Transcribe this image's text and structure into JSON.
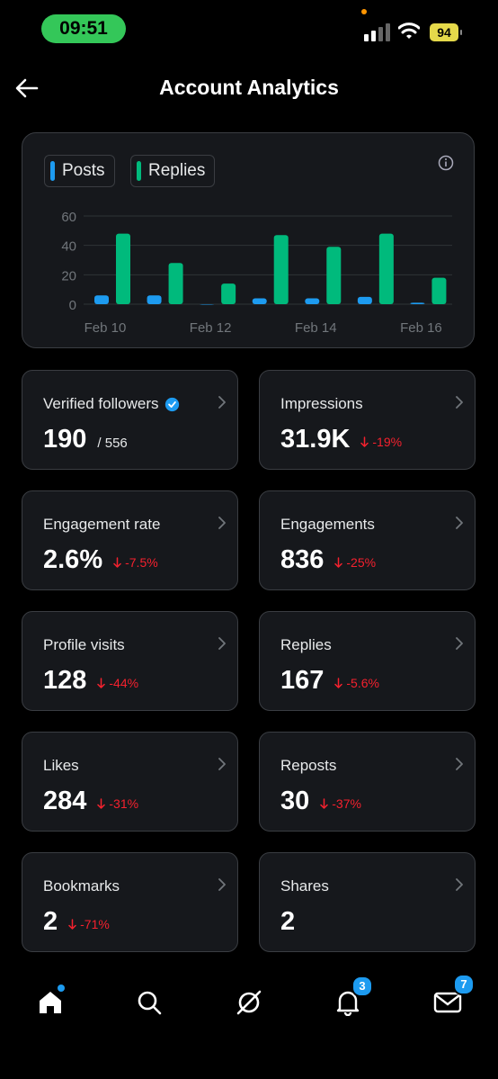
{
  "status_bar": {
    "time": "09:51",
    "battery": "94"
  },
  "header": {
    "title": "Account Analytics"
  },
  "chart_data": {
    "type": "bar",
    "legend": [
      "Posts",
      "Replies"
    ],
    "x_tick_labels": [
      "Feb 10",
      "Feb 12",
      "Feb 14",
      "Feb 16"
    ],
    "y_ticks": [
      "60",
      "40",
      "20",
      "0"
    ],
    "ylim": [
      0,
      60
    ],
    "categories": [
      "Feb 10",
      "Feb 11",
      "Feb 12",
      "Feb 13",
      "Feb 14",
      "Feb 15",
      "Feb 16"
    ],
    "series": [
      {
        "name": "Posts",
        "color": "#1d9bf0",
        "values": [
          6,
          6,
          0,
          4,
          4,
          5,
          1
        ]
      },
      {
        "name": "Replies",
        "color": "#00ba7c",
        "values": [
          48,
          28,
          14,
          47,
          39,
          48,
          18
        ]
      }
    ],
    "grid": true
  },
  "stats": [
    {
      "label": "Verified followers",
      "value": "190",
      "sub": "/ 556",
      "change": "",
      "verified": true
    },
    {
      "label": "Impressions",
      "value": "31.9K",
      "sub": "",
      "change": "-19%"
    },
    {
      "label": "Engagement rate",
      "value": "2.6%",
      "sub": "",
      "change": "-7.5%"
    },
    {
      "label": "Engagements",
      "value": "836",
      "sub": "",
      "change": "-25%"
    },
    {
      "label": "Profile visits",
      "value": "128",
      "sub": "",
      "change": "-44%"
    },
    {
      "label": "Replies",
      "value": "167",
      "sub": "",
      "change": "-5.6%"
    },
    {
      "label": "Likes",
      "value": "284",
      "sub": "",
      "change": "-31%"
    },
    {
      "label": "Reposts",
      "value": "30",
      "sub": "",
      "change": "-37%"
    },
    {
      "label": "Bookmarks",
      "value": "2",
      "sub": "",
      "change": "-71%"
    },
    {
      "label": "Shares",
      "value": "2",
      "sub": "",
      "change": ""
    }
  ],
  "tab_bar": {
    "notifications_badge": "3",
    "messages_badge": "7"
  },
  "colors": {
    "accent": "#1d9bf0",
    "replies": "#00ba7c",
    "negative": "#f4212e"
  },
  "icons": [
    "back-arrow-icon",
    "info-icon",
    "chevron-right-icon",
    "verified-badge-icon",
    "home-icon",
    "search-icon",
    "grok-icon",
    "bell-icon",
    "mail-icon"
  ]
}
